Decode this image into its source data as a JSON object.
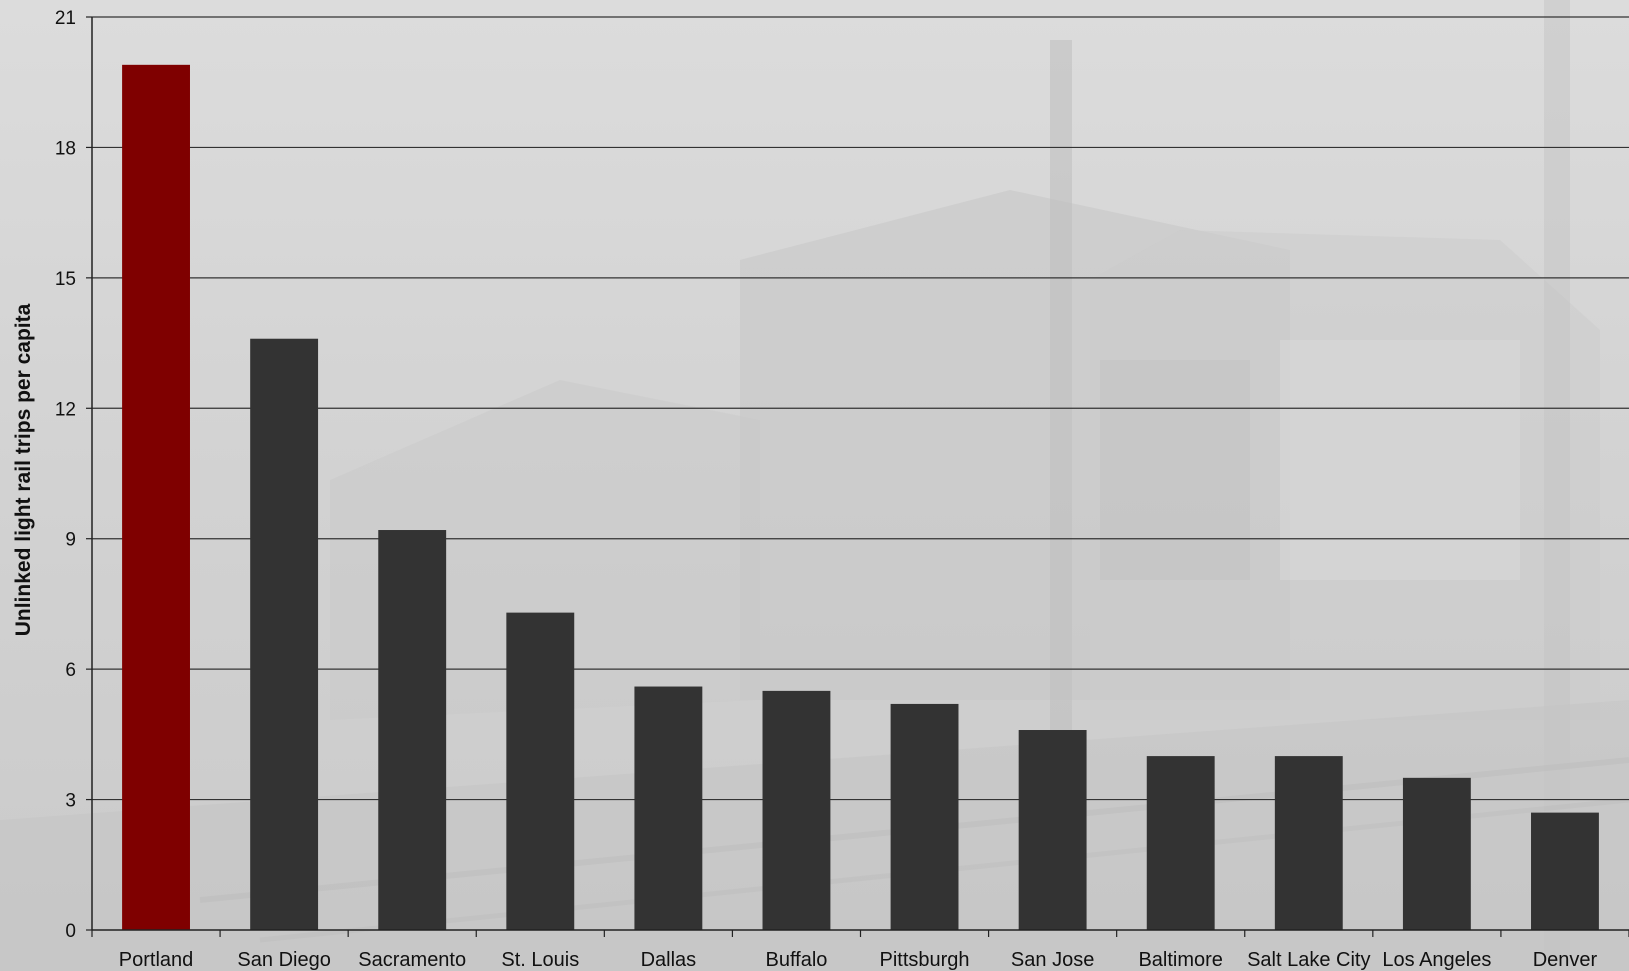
{
  "chart_data": {
    "type": "bar",
    "title": "",
    "xlabel": "",
    "ylabel": "Unlinked light rail trips per capita",
    "categories": [
      "Portland",
      "San Diego",
      "Sacramento",
      "St. Louis",
      "Dallas",
      "Buffalo",
      "Pittsburgh",
      "San Jose",
      "Baltimore",
      "Salt Lake City",
      "Los Angeles",
      "Denver"
    ],
    "values": [
      19.9,
      13.6,
      9.2,
      7.3,
      5.6,
      5.5,
      5.2,
      4.6,
      4.0,
      4.0,
      3.5,
      2.7
    ],
    "ylim": [
      0,
      21
    ],
    "yticks": [
      0,
      3,
      6,
      9,
      12,
      15,
      18,
      21
    ],
    "grid": true,
    "legend": "none",
    "highlight_category": "Portland",
    "colors": {
      "highlight": "#7f0000",
      "bar": "#333333",
      "grid": "#333333",
      "axis": "#222222"
    }
  }
}
